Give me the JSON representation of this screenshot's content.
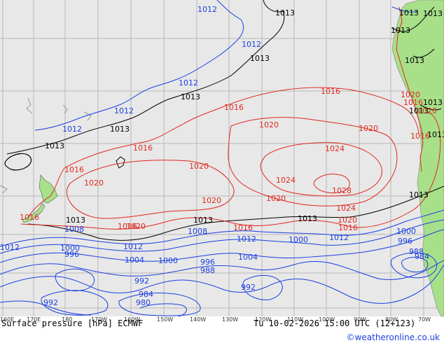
{
  "map": {
    "title": "Surface pressure [hPa] ECMWF",
    "valid_time": "Tu 10-02-2026 15:00 UTC (12+123)",
    "credit": "©weatheronline.co.uk",
    "colors": {
      "background": "#e8e8e8",
      "land": "#a8e08a",
      "grid": "#b8b8b8",
      "isobar_low": "#1a3fe0",
      "isobar_mid": "#000000",
      "isobar_high": "#e0281e",
      "coast": "#808080"
    },
    "lon_ticks": [
      "160E",
      "170E",
      "180",
      "170W",
      "160W",
      "150W",
      "140W",
      "130W",
      "120W",
      "110W",
      "100W",
      "90W",
      "80W",
      "70W"
    ],
    "isobar_labels": [
      {
        "value": "1012",
        "color": "blue"
      },
      {
        "value": "1013",
        "color": "black"
      },
      {
        "value": "1012",
        "color": "blue"
      },
      {
        "value": "1013",
        "color": "black"
      },
      {
        "value": "1012",
        "color": "blue"
      },
      {
        "value": "1013",
        "color": "black"
      },
      {
        "value": "1012",
        "color": "blue"
      },
      {
        "value": "1013",
        "color": "black"
      },
      {
        "value": "1012",
        "color": "blue"
      },
      {
        "value": "1013",
        "color": "black"
      },
      {
        "value": "1013",
        "color": "black"
      },
      {
        "value": "1013",
        "color": "black"
      },
      {
        "value": "1013",
        "color": "black"
      },
      {
        "value": "1013",
        "color": "black"
      },
      {
        "value": "1013",
        "color": "black"
      },
      {
        "value": "1013",
        "color": "black"
      },
      {
        "value": "1013",
        "color": "black"
      },
      {
        "value": "1013",
        "color": "black"
      },
      {
        "value": "1013",
        "color": "black"
      },
      {
        "value": "1013",
        "color": "black"
      },
      {
        "value": "1013",
        "color": "black"
      },
      {
        "value": "1016",
        "color": "red"
      },
      {
        "value": "1016",
        "color": "red"
      },
      {
        "value": "1016",
        "color": "red"
      },
      {
        "value": "1016",
        "color": "red"
      },
      {
        "value": "1016",
        "color": "red"
      },
      {
        "value": "1016",
        "color": "red"
      },
      {
        "value": "1016",
        "color": "red"
      },
      {
        "value": "1016",
        "color": "red"
      },
      {
        "value": "1016",
        "color": "red"
      },
      {
        "value": "1016",
        "color": "red"
      },
      {
        "value": "1020",
        "color": "red"
      },
      {
        "value": "1020",
        "color": "red"
      },
      {
        "value": "1020",
        "color": "red"
      },
      {
        "value": "1020",
        "color": "red"
      },
      {
        "value": "1020",
        "color": "red"
      },
      {
        "value": "1020",
        "color": "red"
      },
      {
        "value": "1020",
        "color": "red"
      },
      {
        "value": "1020",
        "color": "red"
      },
      {
        "value": "1020",
        "color": "red"
      },
      {
        "value": "1020",
        "color": "red"
      },
      {
        "value": "1024",
        "color": "red"
      },
      {
        "value": "1024",
        "color": "red"
      },
      {
        "value": "1024",
        "color": "red"
      },
      {
        "value": "1028",
        "color": "red"
      },
      {
        "value": "1012",
        "color": "blue"
      },
      {
        "value": "1012",
        "color": "blue"
      },
      {
        "value": "1012",
        "color": "blue"
      },
      {
        "value": "1012",
        "color": "blue"
      },
      {
        "value": "1008",
        "color": "blue"
      },
      {
        "value": "1008",
        "color": "blue"
      },
      {
        "value": "1004",
        "color": "blue"
      },
      {
        "value": "1004",
        "color": "blue"
      },
      {
        "value": "1000",
        "color": "blue"
      },
      {
        "value": "1000",
        "color": "blue"
      },
      {
        "value": "1000",
        "color": "blue"
      },
      {
        "value": "1000",
        "color": "blue"
      },
      {
        "value": "996",
        "color": "blue"
      },
      {
        "value": "996",
        "color": "blue"
      },
      {
        "value": "996",
        "color": "blue"
      },
      {
        "value": "992",
        "color": "blue"
      },
      {
        "value": "992",
        "color": "blue"
      },
      {
        "value": "992",
        "color": "blue"
      },
      {
        "value": "988",
        "color": "blue"
      },
      {
        "value": "988",
        "color": "blue"
      },
      {
        "value": "984",
        "color": "blue"
      },
      {
        "value": "980",
        "color": "blue"
      },
      {
        "value": "984",
        "color": "blue"
      }
    ]
  }
}
